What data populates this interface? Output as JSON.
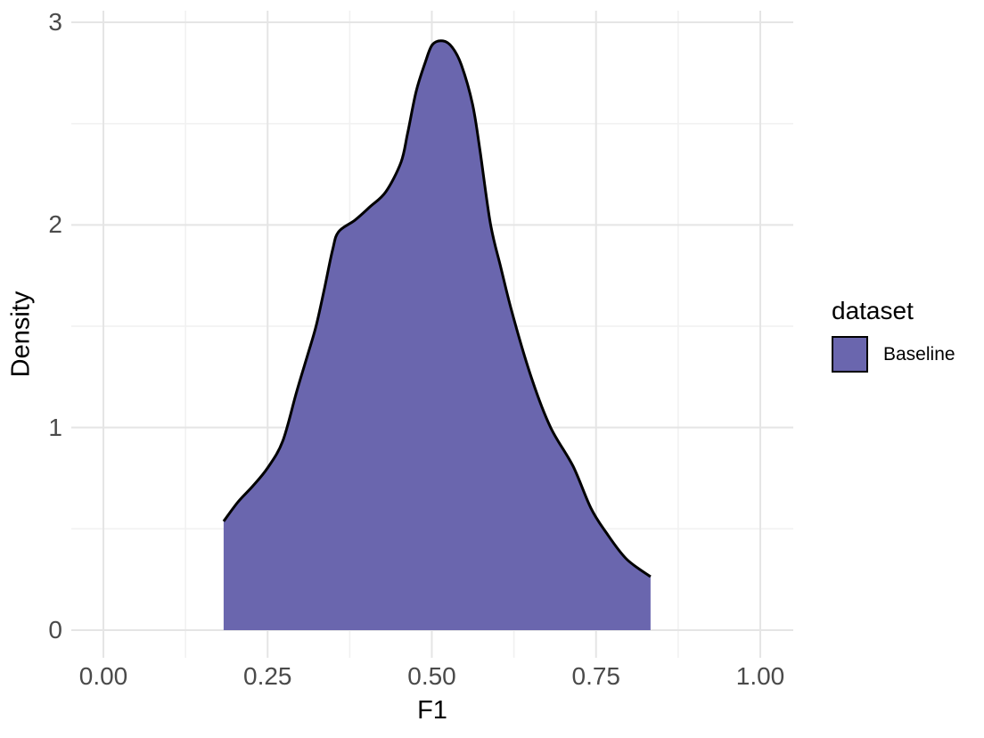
{
  "chart_data": {
    "type": "area",
    "subtype": "kernel-density",
    "title": "",
    "xlabel": "F1",
    "ylabel": "Density",
    "grid": "on",
    "legend_position": "right",
    "xlim": [
      -0.05,
      1.05
    ],
    "ylim": [
      -0.15,
      3.05
    ],
    "x_ticks": {
      "values": [
        0.0,
        0.25,
        0.5,
        0.75,
        1.0
      ],
      "labels": [
        "0.00",
        "0.25",
        "0.50",
        "0.75",
        "1.00"
      ]
    },
    "y_ticks": {
      "values": [
        0,
        1,
        2,
        3
      ],
      "labels": [
        "0",
        "1",
        "2",
        "3"
      ]
    },
    "x_minor": [
      0.125,
      0.375,
      0.625,
      0.875
    ],
    "y_minor": [
      0.5,
      1.5,
      2.5
    ],
    "series": [
      {
        "name": "Baseline",
        "fill": "#6a66ae",
        "stroke": "#000000",
        "x": [
          0.183,
          0.205,
          0.228,
          0.25,
          0.273,
          0.294,
          0.311,
          0.324,
          0.337,
          0.349,
          0.358,
          0.383,
          0.406,
          0.43,
          0.453,
          0.463,
          0.476,
          0.49,
          0.501,
          0.517,
          0.531,
          0.545,
          0.562,
          0.573,
          0.589,
          0.605,
          0.623,
          0.653,
          0.681,
          0.715,
          0.742,
          0.765,
          0.796,
          0.833
        ],
        "density": [
          0.537,
          0.633,
          0.713,
          0.801,
          0.933,
          1.175,
          1.359,
          1.504,
          1.694,
          1.878,
          1.966,
          2.024,
          2.09,
          2.164,
          2.309,
          2.45,
          2.657,
          2.802,
          2.89,
          2.908,
          2.877,
          2.789,
          2.595,
          2.375,
          2.01,
          1.79,
          1.557,
          1.232,
          0.999,
          0.809,
          0.603,
          0.484,
          0.352,
          0.264
        ]
      }
    ]
  },
  "legend": {
    "title": "dataset",
    "items": [
      {
        "label": "Baseline",
        "fill": "#6a66ae"
      }
    ]
  },
  "colors": {
    "background": "#ffffff",
    "grid_major": "#e5e5e5",
    "grid_minor": "#f1f1f1",
    "tick_text": "#4a4a4a",
    "axis_title_text": "#000000",
    "area_fill": "#6a66ae",
    "curve_stroke": "#000000"
  }
}
